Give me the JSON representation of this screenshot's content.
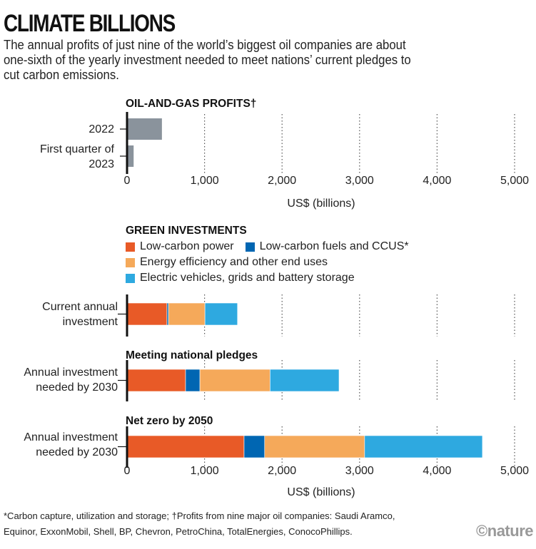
{
  "title": "CLIMATE BILLIONS",
  "subtitle": "The annual profits of just nine of the world’s biggest oil companies are about one-sixth of the yearly investment needed to meet nations’ current pledges to cut carbon emissions.",
  "colors": {
    "profits": "#8a939c",
    "low_carbon_power": "#e85a27",
    "low_carbon_fuels_ccus": "#0066b2",
    "energy_efficiency": "#f5a95a",
    "ev_grids_storage": "#2ea9e0",
    "axis": "#111111"
  },
  "chart_data": [
    {
      "type": "bar",
      "orientation": "horizontal",
      "title": "OIL-AND-GAS PROFITS†",
      "categories": [
        "2022",
        "First quarter of 2023"
      ],
      "values": [
        450,
        85
      ],
      "xlabel": "US$ (billions)",
      "xlim": [
        0,
        5000
      ],
      "xticks": [
        "0",
        "1,000",
        "2,000",
        "3,000",
        "4,000",
        "5,000"
      ],
      "grid": "dotted vertical"
    },
    {
      "type": "bar",
      "orientation": "horizontal",
      "stacked": true,
      "title": "GREEN INVESTMENTS",
      "legend": [
        {
          "key": "low_carbon_power",
          "label": "Low-carbon power"
        },
        {
          "key": "low_carbon_fuels_ccus",
          "label": "Low-carbon fuels and CCUS*"
        },
        {
          "key": "energy_efficiency",
          "label": "Energy efficiency and other end uses"
        },
        {
          "key": "ev_grids_storage",
          "label": "Electric vehicles, grids and battery storage"
        }
      ],
      "legend_position": "top-left",
      "groups": [
        {
          "heading": "",
          "category": "Current annual investment",
          "values": [
            515,
            20,
            470,
            420
          ]
        },
        {
          "heading": "Meeting national pledges",
          "category": "Annual investment needed by 2030",
          "values": [
            755,
            185,
            905,
            890
          ]
        },
        {
          "heading": "Net zero by 2050",
          "category": "Annual investment needed by 2030",
          "values": [
            1510,
            265,
            1290,
            1520
          ]
        }
      ],
      "xlabel": "US$ (billions)",
      "xlim": [
        0,
        5000
      ],
      "xticks": [
        "0",
        "1,000",
        "2,000",
        "3,000",
        "4,000",
        "5,000"
      ],
      "grid": "dotted vertical"
    }
  ],
  "footnote_line1": "*Carbon capture, utilization and storage; †Profits from nine major oil companies: Saudi Aramco,",
  "footnote_line2": "Equinor, ExxonMobil, Shell, BP, Chevron, PetroChina, TotalEnergies, ConocoPhillips.",
  "credit": "©nature"
}
